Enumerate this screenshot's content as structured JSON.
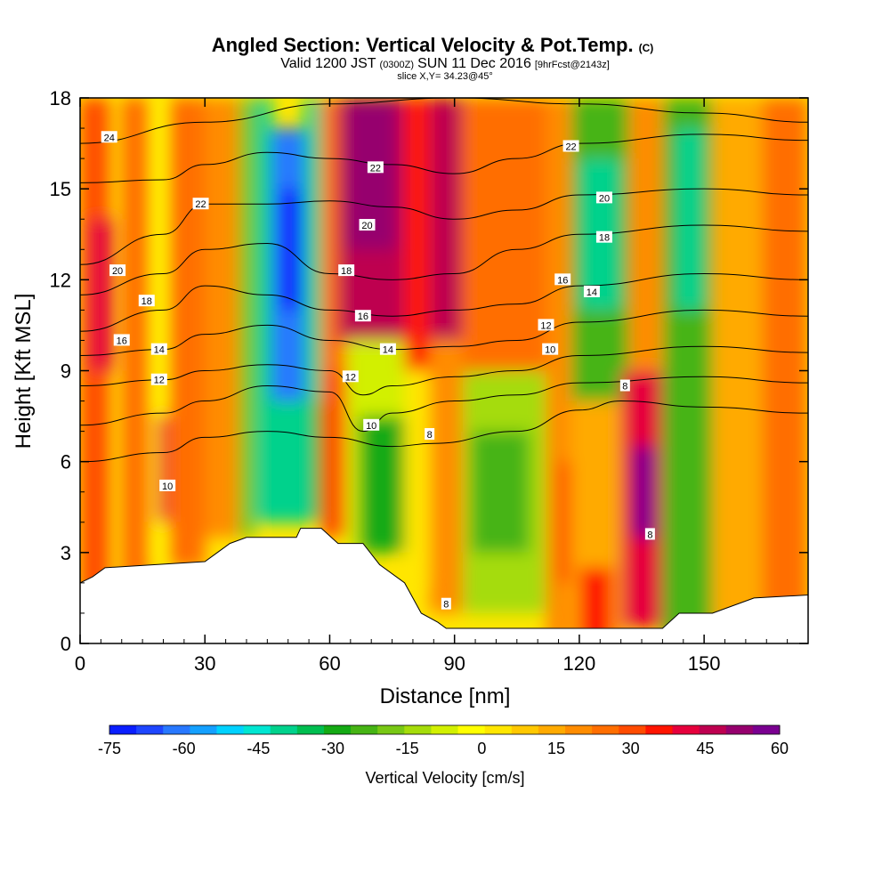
{
  "title": {
    "main": "Angled Section: Vertical Velocity & Pot.Temp.",
    "main_suffix": "(C)",
    "valid_prefix": "Valid 1200 JST",
    "valid_zulu": "(0300Z)",
    "valid_date": "SUN 11 Dec 2016",
    "valid_fcst": "[9hrFcst@2143z]",
    "slice": "slice X,Y= 34.23@45°"
  },
  "chart_data": {
    "type": "heatmap",
    "xlabel": "Distance [nm]",
    "ylabel": "Height [Kft MSL]",
    "xlim": [
      0,
      175
    ],
    "ylim": [
      0,
      18
    ],
    "x_ticks": [
      {
        "v": 0,
        "label": "0"
      },
      {
        "v": 30,
        "label": "30"
      },
      {
        "v": 60,
        "label": "60"
      },
      {
        "v": 90,
        "label": "90"
      },
      {
        "v": 120,
        "label": "120"
      },
      {
        "v": 150,
        "label": "150"
      }
    ],
    "y_ticks": [
      {
        "v": 0,
        "label": "0"
      },
      {
        "v": 3,
        "label": "3"
      },
      {
        "v": 6,
        "label": "6"
      },
      {
        "v": 9,
        "label": "9"
      },
      {
        "v": 12,
        "label": "12"
      },
      {
        "v": 15,
        "label": "15"
      },
      {
        "v": 18,
        "label": "18"
      }
    ],
    "colorbar": {
      "title": "Vertical Velocity [cm/s]",
      "min": -75,
      "max": 60,
      "step": 5,
      "ticks": [
        {
          "v": -75,
          "label": "-75"
        },
        {
          "v": -60,
          "label": "-60"
        },
        {
          "v": -45,
          "label": "-45"
        },
        {
          "v": -30,
          "label": "-30"
        },
        {
          "v": -15,
          "label": "-15"
        },
        {
          "v": 0,
          "label": "0"
        },
        {
          "v": 15,
          "label": "15"
        },
        {
          "v": 30,
          "label": "30"
        },
        {
          "v": 45,
          "label": "45"
        },
        {
          "v": 60,
          "label": "60"
        }
      ],
      "colors": [
        "#0a1eff",
        "#1e46ff",
        "#2878ff",
        "#14a0ff",
        "#00d2ff",
        "#00e6d2",
        "#00d28c",
        "#00be50",
        "#14aa14",
        "#46b414",
        "#78c814",
        "#a5dc0a",
        "#d2f000",
        "#ffff00",
        "#ffe600",
        "#ffc800",
        "#ffaa00",
        "#ff8c00",
        "#ff6e00",
        "#ff4b00",
        "#ff1400",
        "#e6003c",
        "#be0050",
        "#96006e",
        "#7a0090"
      ]
    },
    "velocity_cells": [
      {
        "x": 0,
        "x2": 7,
        "y": 0,
        "y2": 18,
        "w": 20
      },
      {
        "x": 2,
        "x2": 8,
        "y": 9,
        "y2": 14,
        "w": 30
      },
      {
        "x": 10,
        "x2": 17,
        "y": 0,
        "y2": 18,
        "w": 15
      },
      {
        "x": 17,
        "x2": 21,
        "y": 2.5,
        "y2": 18,
        "w": -10
      },
      {
        "x": 18.5,
        "x2": 21,
        "y": 4,
        "y2": 7.5,
        "w": 30
      },
      {
        "x": 21,
        "x2": 30,
        "y": 2.5,
        "y2": 18,
        "w": 15
      },
      {
        "x": 30,
        "x2": 38,
        "y": 3.5,
        "y2": 18,
        "w": 10
      },
      {
        "x": 38,
        "x2": 42,
        "y": 3.5,
        "y2": 18,
        "w": -25
      },
      {
        "x": 42,
        "x2": 46,
        "y": 4,
        "y2": 18,
        "w": -45
      },
      {
        "x": 46,
        "x2": 54,
        "y": 8,
        "y2": 17,
        "w": -65
      },
      {
        "x": 48,
        "x2": 53,
        "y": 11,
        "y2": 15,
        "w": -75
      },
      {
        "x": 46,
        "x2": 55,
        "y": 4,
        "y2": 8,
        "w": -45
      },
      {
        "x": 54,
        "x2": 58,
        "y": 4,
        "y2": 18,
        "w": -45
      },
      {
        "x": 56,
        "x2": 58,
        "y": 4,
        "y2": 8,
        "w": -30
      },
      {
        "x": 58,
        "x2": 64,
        "y": 3.5,
        "y2": 9,
        "w": 20
      },
      {
        "x": 58,
        "x2": 64,
        "y": 9,
        "y2": 18,
        "w": 15
      },
      {
        "x": 62,
        "x2": 78,
        "y": 10,
        "y2": 18,
        "w": 35
      },
      {
        "x": 64,
        "x2": 76,
        "y": 13,
        "y2": 18,
        "w": 40
      },
      {
        "x": 64,
        "x2": 78,
        "y": 3,
        "y2": 10,
        "w": -15
      },
      {
        "x": 67,
        "x2": 78,
        "y": 3,
        "y2": 7.5,
        "w": -35
      },
      {
        "x": 78,
        "x2": 84,
        "y": 9,
        "y2": 18,
        "w": 25
      },
      {
        "x": 78,
        "x2": 84,
        "y": 2,
        "y2": 9,
        "w": -5
      },
      {
        "x": 84,
        "x2": 92,
        "y": 10,
        "y2": 18,
        "w": 35
      },
      {
        "x": 84,
        "x2": 92,
        "y": 1,
        "y2": 10,
        "w": 10
      },
      {
        "x": 92,
        "x2": 112,
        "y": 9,
        "y2": 18,
        "w": 15
      },
      {
        "x": 92,
        "x2": 112,
        "y": 1,
        "y2": 9,
        "w": -20
      },
      {
        "x": 94,
        "x2": 108,
        "y": 3,
        "y2": 7,
        "w": -30
      },
      {
        "x": 112,
        "x2": 118,
        "y": 0,
        "y2": 18,
        "w": 10
      },
      {
        "x": 115,
        "x2": 118,
        "y": 2,
        "y2": 6,
        "w": 20
      },
      {
        "x": 118,
        "x2": 132,
        "y": 8,
        "y2": 18,
        "w": -30
      },
      {
        "x": 120,
        "x2": 130,
        "y": 11,
        "y2": 16,
        "w": -45
      },
      {
        "x": 118,
        "x2": 132,
        "y": 0,
        "y2": 8,
        "w": 5
      },
      {
        "x": 120,
        "x2": 128,
        "y": 0,
        "y2": 2.5,
        "w": 25
      },
      {
        "x": 130,
        "x2": 140,
        "y": 0.5,
        "y2": 9,
        "w": 30
      },
      {
        "x": 133,
        "x2": 138,
        "y": 3.5,
        "y2": 6.5,
        "w": 50
      },
      {
        "x": 132,
        "x2": 140,
        "y": 9,
        "y2": 18,
        "w": 10
      },
      {
        "x": 140,
        "x2": 152,
        "y": 0,
        "y2": 18,
        "w": -30
      },
      {
        "x": 143,
        "x2": 150,
        "y": 11,
        "y2": 17,
        "w": -45
      },
      {
        "x": 152,
        "x2": 164,
        "y": 0,
        "y2": 18,
        "w": 5
      },
      {
        "x": 164,
        "x2": 175,
        "y": 0,
        "y2": 18,
        "w": 15
      }
    ],
    "terrain": [
      [
        0,
        2
      ],
      [
        3,
        2.2
      ],
      [
        6,
        2.5
      ],
      [
        30,
        2.7
      ],
      [
        33,
        3.0
      ],
      [
        36,
        3.3
      ],
      [
        40,
        3.5
      ],
      [
        52,
        3.5
      ],
      [
        53,
        3.8
      ],
      [
        58,
        3.8
      ],
      [
        62,
        3.3
      ],
      [
        68,
        3.3
      ],
      [
        72,
        2.6
      ],
      [
        78,
        2.0
      ],
      [
        82,
        1.0
      ],
      [
        86,
        0.7
      ],
      [
        88,
        0.5
      ],
      [
        100,
        0.5
      ],
      [
        140,
        0.5
      ],
      [
        144,
        1.0
      ],
      [
        152,
        1.0
      ],
      [
        156,
        1.2
      ],
      [
        162,
        1.5
      ],
      [
        175,
        1.6
      ]
    ],
    "isentropes": [
      {
        "value": 24,
        "points": [
          [
            0,
            16.5
          ],
          [
            30,
            17.2
          ],
          [
            60,
            17.8
          ],
          [
            90,
            18
          ],
          [
            120,
            17.8
          ],
          [
            150,
            17.5
          ],
          [
            175,
            17.2
          ]
        ]
      },
      {
        "value": 22,
        "points": [
          [
            0,
            15.2
          ],
          [
            20,
            15.3
          ],
          [
            30,
            15.8
          ],
          [
            45,
            16.2
          ],
          [
            60,
            16.0
          ],
          [
            75,
            15.8
          ],
          [
            90,
            15.5
          ],
          [
            105,
            16.0
          ],
          [
            120,
            16.5
          ],
          [
            150,
            16.8
          ],
          [
            175,
            16.6
          ]
        ]
      },
      {
        "value": 20,
        "points": [
          [
            0,
            12.5
          ],
          [
            20,
            13.5
          ],
          [
            30,
            14.5
          ],
          [
            45,
            14.5
          ],
          [
            60,
            14.6
          ],
          [
            75,
            14.4
          ],
          [
            90,
            14.0
          ],
          [
            105,
            14.3
          ],
          [
            120,
            14.8
          ],
          [
            150,
            15.0
          ],
          [
            175,
            14.8
          ]
        ]
      },
      {
        "value": 18,
        "points": [
          [
            0,
            11.5
          ],
          [
            20,
            12.2
          ],
          [
            30,
            13.0
          ],
          [
            45,
            13.2
          ],
          [
            60,
            12.2
          ],
          [
            75,
            12.0
          ],
          [
            90,
            12.2
          ],
          [
            105,
            13.0
          ],
          [
            120,
            13.5
          ],
          [
            150,
            13.8
          ],
          [
            175,
            13.6
          ]
        ]
      },
      {
        "value": 16,
        "points": [
          [
            0,
            10.3
          ],
          [
            20,
            11.0
          ],
          [
            30,
            11.8
          ],
          [
            45,
            11.5
          ],
          [
            60,
            11.0
          ],
          [
            75,
            10.8
          ],
          [
            90,
            11.0
          ],
          [
            105,
            11.2
          ],
          [
            120,
            11.8
          ],
          [
            150,
            12.2
          ],
          [
            175,
            12.0
          ]
        ]
      },
      {
        "value": 14,
        "points": [
          [
            0,
            9.5
          ],
          [
            20,
            9.7
          ],
          [
            30,
            10.2
          ],
          [
            45,
            10.5
          ],
          [
            60,
            10.0
          ],
          [
            75,
            9.7
          ],
          [
            90,
            9.8
          ],
          [
            105,
            10.0
          ],
          [
            120,
            10.6
          ],
          [
            150,
            11.0
          ],
          [
            175,
            10.8
          ]
        ]
      },
      {
        "value": 12,
        "points": [
          [
            0,
            8.5
          ],
          [
            20,
            8.7
          ],
          [
            30,
            9.0
          ],
          [
            45,
            9.2
          ],
          [
            60,
            9.0
          ],
          [
            68,
            8.2
          ],
          [
            75,
            8.5
          ],
          [
            90,
            8.8
          ],
          [
            105,
            9.0
          ],
          [
            120,
            9.5
          ],
          [
            150,
            9.8
          ],
          [
            175,
            9.6
          ]
        ]
      },
      {
        "value": 10,
        "points": [
          [
            0,
            7.2
          ],
          [
            20,
            7.6
          ],
          [
            30,
            8.0
          ],
          [
            45,
            8.5
          ],
          [
            60,
            8.3
          ],
          [
            68,
            7.0
          ],
          [
            75,
            7.6
          ],
          [
            90,
            8.0
          ],
          [
            105,
            8.2
          ],
          [
            120,
            8.6
          ],
          [
            150,
            8.8
          ],
          [
            175,
            8.6
          ]
        ]
      },
      {
        "value": 8,
        "points": [
          [
            0,
            6.0
          ],
          [
            20,
            6.3
          ],
          [
            30,
            6.8
          ],
          [
            45,
            7.0
          ],
          [
            60,
            6.8
          ],
          [
            75,
            6.5
          ],
          [
            85,
            6.6
          ],
          [
            105,
            7.0
          ],
          [
            120,
            7.7
          ],
          [
            130,
            8.0
          ],
          [
            150,
            7.8
          ],
          [
            175,
            7.6
          ]
        ]
      }
    ],
    "isentrope_labels": [
      {
        "x": 7,
        "y": 16.7,
        "label": "24"
      },
      {
        "x": 29,
        "y": 14.5,
        "label": "22"
      },
      {
        "x": 71,
        "y": 15.7,
        "label": "22"
      },
      {
        "x": 118,
        "y": 16.4,
        "label": "22"
      },
      {
        "x": 9,
        "y": 12.3,
        "label": "20"
      },
      {
        "x": 69,
        "y": 13.8,
        "label": "20"
      },
      {
        "x": 126,
        "y": 14.7,
        "label": "20"
      },
      {
        "x": 16,
        "y": 11.3,
        "label": "18"
      },
      {
        "x": 64,
        "y": 12.3,
        "label": "18"
      },
      {
        "x": 126,
        "y": 13.4,
        "label": "18"
      },
      {
        "x": 10,
        "y": 10.0,
        "label": "16"
      },
      {
        "x": 68,
        "y": 10.8,
        "label": "16"
      },
      {
        "x": 116,
        "y": 12.0,
        "label": "16"
      },
      {
        "x": 19,
        "y": 9.7,
        "label": "14"
      },
      {
        "x": 74,
        "y": 9.7,
        "label": "14"
      },
      {
        "x": 123,
        "y": 11.6,
        "label": "14"
      },
      {
        "x": 19,
        "y": 8.7,
        "label": "12"
      },
      {
        "x": 65,
        "y": 8.8,
        "label": "12"
      },
      {
        "x": 112,
        "y": 10.5,
        "label": "12"
      },
      {
        "x": 70,
        "y": 7.2,
        "label": "10"
      },
      {
        "x": 113,
        "y": 9.7,
        "label": "10"
      },
      {
        "x": 21,
        "y": 5.2,
        "label": "10"
      },
      {
        "x": 84,
        "y": 6.9,
        "label": "8"
      },
      {
        "x": 131,
        "y": 8.5,
        "label": "8"
      },
      {
        "x": 137,
        "y": 3.6,
        "label": "8"
      },
      {
        "x": 88,
        "y": 1.3,
        "label": "8"
      }
    ]
  }
}
